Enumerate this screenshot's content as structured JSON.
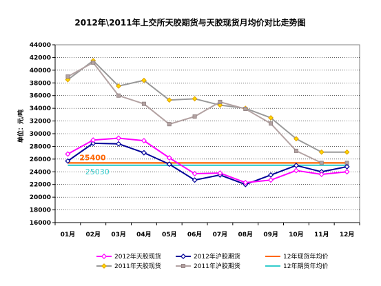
{
  "chart_data": {
    "type": "line",
    "title": "2012年\\2011年上交所天胶期货与天胶现货月均价对比走势图",
    "ylabel": "单位：元/吨",
    "xlabel": "",
    "ylim": [
      16000,
      44000
    ],
    "yticks": [
      16000,
      18000,
      20000,
      22000,
      24000,
      26000,
      28000,
      30000,
      32000,
      34000,
      36000,
      38000,
      40000,
      42000,
      44000
    ],
    "categories": [
      "01月",
      "02月",
      "03月",
      "04月",
      "05月",
      "06月",
      "07月",
      "08月",
      "09月",
      "10月",
      "11月",
      "12月"
    ],
    "grid": true,
    "legend_position": "bottom",
    "series": [
      {
        "name": "2012年天胶现货",
        "color": "#ff00ff",
        "marker": "diamond",
        "values": [
          26800,
          29000,
          29300,
          28900,
          26200,
          23700,
          23800,
          22300,
          22700,
          24200,
          23600,
          24000
        ]
      },
      {
        "name": "2012年沪胶期货",
        "color": "#000099",
        "marker": "diamond",
        "values": [
          25700,
          28500,
          28400,
          27000,
          25200,
          22700,
          23500,
          22000,
          23500,
          25000,
          24000,
          24800
        ]
      },
      {
        "name": "12年现货年均价",
        "color": "#ff6600",
        "marker": "none",
        "constant": 25400,
        "values": [
          25400,
          25400,
          25400,
          25400,
          25400,
          25400,
          25400,
          25400,
          25400,
          25400,
          25400,
          25400
        ]
      },
      {
        "name": "2011年天胶现货",
        "color": "#999999",
        "marker": "diamond-yellow",
        "values": [
          38500,
          41500,
          37500,
          38400,
          35300,
          35500,
          34500,
          34000,
          32500,
          29200,
          27100,
          27100
        ]
      },
      {
        "name": "2011年沪胶期货",
        "color": "#b3a2a2",
        "marker": "square",
        "values": [
          39000,
          41200,
          36000,
          34700,
          31500,
          32700,
          35000,
          33900,
          31600,
          27300,
          25400,
          25400
        ]
      },
      {
        "name": "12年期货年均价",
        "color": "#33cccc",
        "marker": "none",
        "constant": 25030,
        "values": [
          25030,
          25030,
          25030,
          25030,
          25030,
          25030,
          25030,
          25030,
          25030,
          25030,
          25030,
          25030
        ]
      }
    ],
    "annotations": [
      {
        "text": "25400",
        "color": "#ff6600"
      },
      {
        "text": "25030",
        "color": "#33cccc"
      }
    ]
  }
}
